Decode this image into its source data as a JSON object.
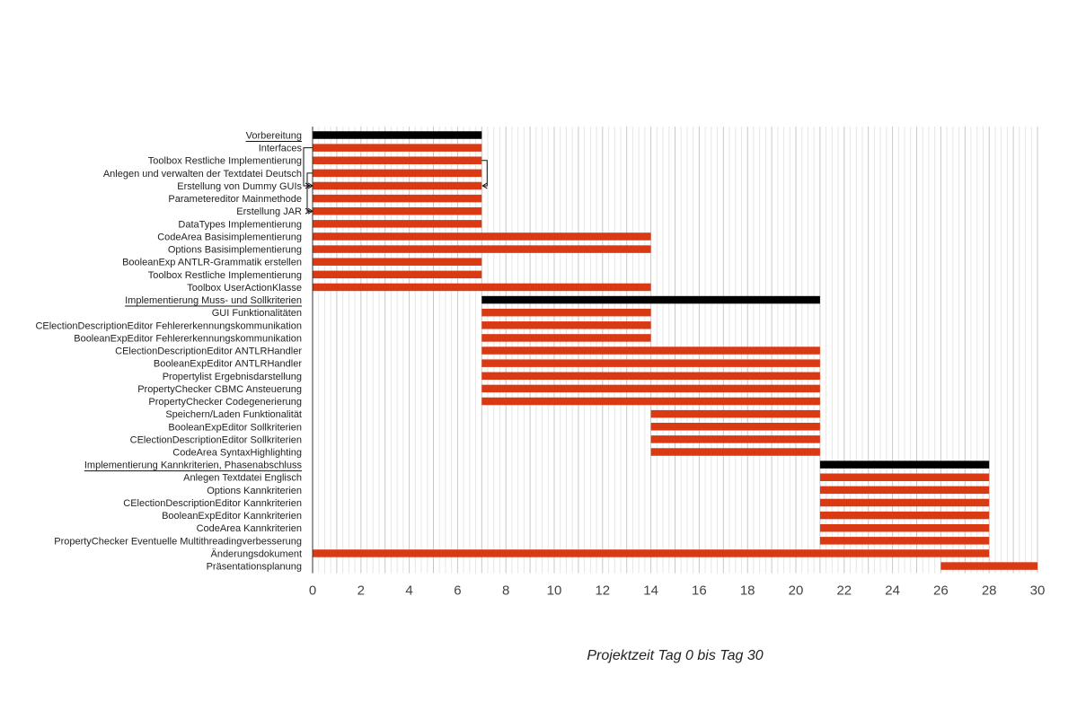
{
  "chart_data": {
    "type": "gantt",
    "xlabel": "Projektzeit Tag 0 bis Tag 30",
    "xlim": [
      0,
      30
    ],
    "xticks": [
      0,
      2,
      4,
      6,
      8,
      10,
      12,
      14,
      16,
      18,
      20,
      22,
      24,
      26,
      28,
      30
    ],
    "colors": {
      "group": "#000000",
      "task": "#d93a14",
      "grid_major": "#c8c8c8",
      "grid_minor": "#e6e6e6"
    },
    "tasks": [
      {
        "label": "Vorbereitung",
        "start": 0,
        "end": 7,
        "group": true
      },
      {
        "label": "Interfaces",
        "start": 0,
        "end": 7,
        "group": false
      },
      {
        "label": "Toolbox Restliche Implementierung",
        "start": 0,
        "end": 7,
        "group": false
      },
      {
        "label": "Anlegen und verwalten der Textdatei Deutsch",
        "start": 0,
        "end": 7,
        "group": false
      },
      {
        "label": "Erstellung von Dummy GUIs",
        "start": 0,
        "end": 7,
        "group": false
      },
      {
        "label": "Parametereditor Mainmethode",
        "start": 0,
        "end": 7,
        "group": false
      },
      {
        "label": "Erstellung JAR",
        "start": 0,
        "end": 7,
        "group": false
      },
      {
        "label": "DataTypes Implementierung",
        "start": 0,
        "end": 7,
        "group": false
      },
      {
        "label": "CodeArea Basisimplementierung",
        "start": 0,
        "end": 14,
        "group": false
      },
      {
        "label": "Options Basisimplementierung",
        "start": 0,
        "end": 14,
        "group": false
      },
      {
        "label": "BooleanExp ANTLR-Grammatik erstellen",
        "start": 0,
        "end": 7,
        "group": false
      },
      {
        "label": "Toolbox Restliche Implementierung",
        "start": 0,
        "end": 7,
        "group": false
      },
      {
        "label": "Toolbox UserActionKlasse",
        "start": 0,
        "end": 14,
        "group": false
      },
      {
        "label": "Implementierung Muss- und Sollkriterien",
        "start": 7,
        "end": 21,
        "group": true
      },
      {
        "label": "GUI Funktionalitäten",
        "start": 7,
        "end": 14,
        "group": false
      },
      {
        "label": "CElectionDescriptionEditor Fehlererkennungskommunikation",
        "start": 7,
        "end": 14,
        "group": false
      },
      {
        "label": "BooleanExpEditor Fehlererkennungskommunikation",
        "start": 7,
        "end": 14,
        "group": false
      },
      {
        "label": "CElectionDescriptionEditor ANTLRHandler",
        "start": 7,
        "end": 21,
        "group": false
      },
      {
        "label": "BooleanExpEditor ANTLRHandler",
        "start": 7,
        "end": 21,
        "group": false
      },
      {
        "label": "Propertylist Ergebnisdarstellung",
        "start": 7,
        "end": 21,
        "group": false
      },
      {
        "label": "PropertyChecker CBMC Ansteuerung",
        "start": 7,
        "end": 21,
        "group": false
      },
      {
        "label": "PropertyChecker Codegenerierung",
        "start": 7,
        "end": 21,
        "group": false
      },
      {
        "label": "Speichern/Laden Funktionalität",
        "start": 14,
        "end": 21,
        "group": false
      },
      {
        "label": "BooleanExpEditor Sollkriterien",
        "start": 14,
        "end": 21,
        "group": false
      },
      {
        "label": "CElectionDescriptionEditor Sollkriterien",
        "start": 14,
        "end": 21,
        "group": false
      },
      {
        "label": "CodeArea SyntaxHighlighting",
        "start": 14,
        "end": 21,
        "group": false
      },
      {
        "label": "Implementierung Kannkriterien, Phasenabschluss",
        "start": 21,
        "end": 28,
        "group": true
      },
      {
        "label": "Anlegen Textdatei Englisch",
        "start": 21,
        "end": 28,
        "group": false
      },
      {
        "label": "Options Kannkriterien",
        "start": 21,
        "end": 28,
        "group": false
      },
      {
        "label": "CElectionDescriptionEditor Kannkriterien",
        "start": 21,
        "end": 28,
        "group": false
      },
      {
        "label": "BooleanExpEditor Kannkriterien",
        "start": 21,
        "end": 28,
        "group": false
      },
      {
        "label": "CodeArea Kannkriterien",
        "start": 21,
        "end": 28,
        "group": false
      },
      {
        "label": "PropertyChecker Eventuelle Multithreadingverbesserung",
        "start": 21,
        "end": 28,
        "group": false
      },
      {
        "label": "Änderungsdokument",
        "start": 0,
        "end": 28,
        "group": false
      },
      {
        "label": "Präsentationsplanung",
        "start": 26,
        "end": 30,
        "group": false
      }
    ],
    "dependencies": [
      {
        "from": 1,
        "to": 4
      },
      {
        "from": 2,
        "to": 4
      },
      {
        "from": 3,
        "to": 6
      }
    ]
  }
}
